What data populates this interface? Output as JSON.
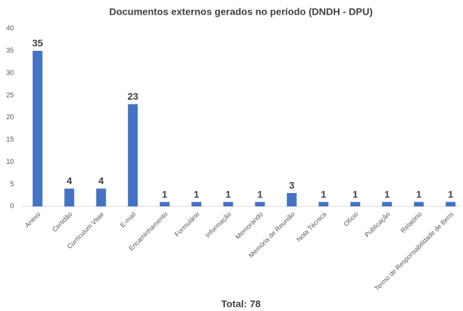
{
  "chart_data": {
    "type": "bar",
    "title": "Documentos externos gerados no período (DNDH - DPU)",
    "categories": [
      "Anexo",
      "Certidão",
      "Curriculum Vitae",
      "E-mail",
      "Encaminhamento",
      "Formulário",
      "Informação",
      "Memorando",
      "Memória de Reunião",
      "Nota Técnica",
      "Ofício",
      "Publicação",
      "Relatório",
      "Termo de Responsabilidade de Bens"
    ],
    "values": [
      35,
      4,
      4,
      23,
      1,
      1,
      1,
      1,
      3,
      1,
      1,
      1,
      1,
      1
    ],
    "color": "#4472c4",
    "ylim": [
      0,
      40
    ],
    "yticks": [
      0,
      5,
      10,
      15,
      20,
      25,
      30,
      35,
      40
    ],
    "grid": false,
    "total_text": "Total: 78"
  }
}
